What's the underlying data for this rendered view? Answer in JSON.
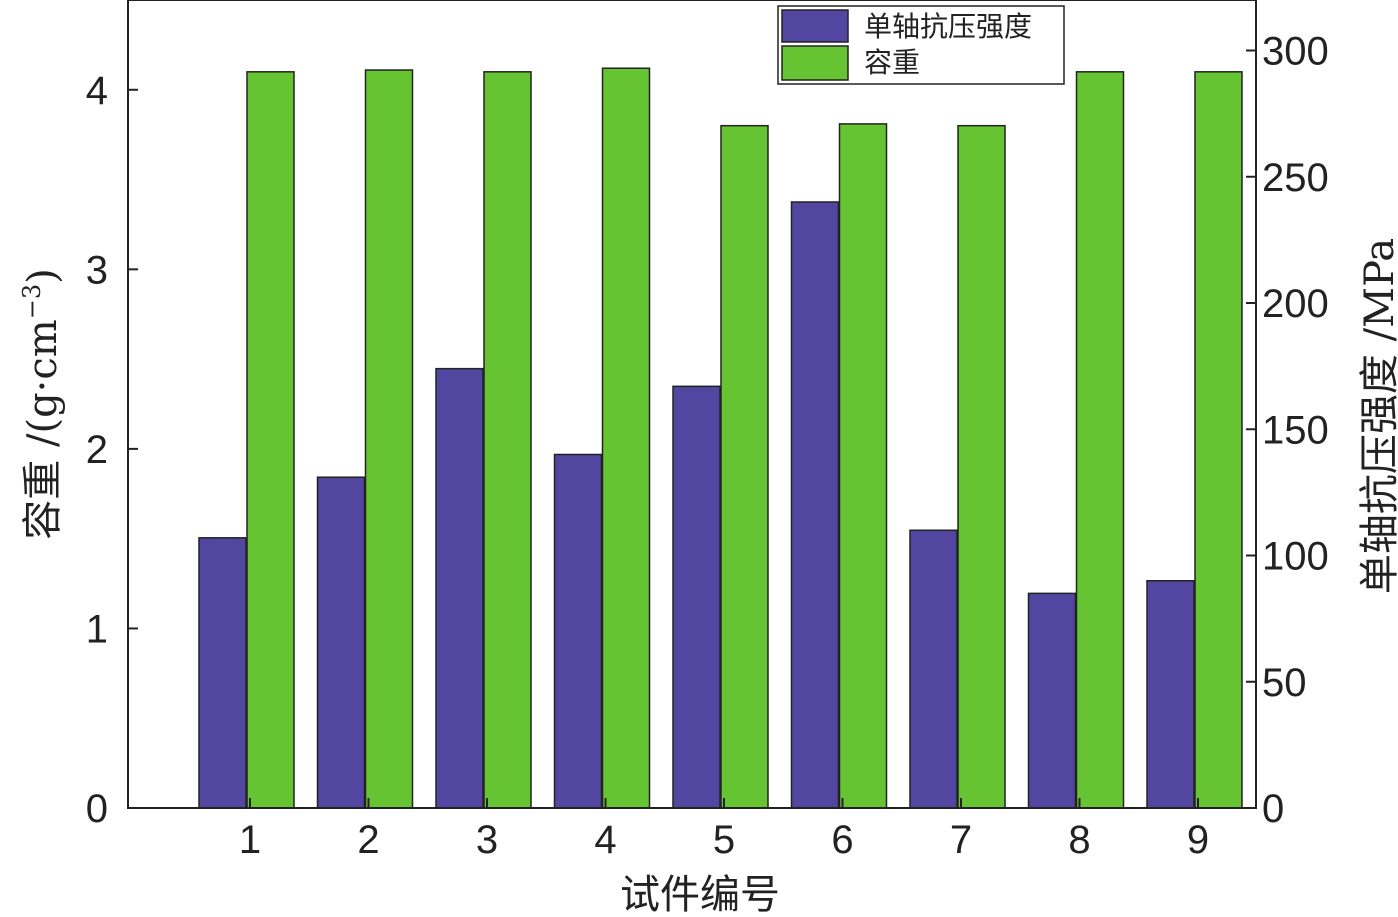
{
  "chart_data": {
    "type": "bar",
    "categories": [
      "1",
      "2",
      "3",
      "4",
      "5",
      "6",
      "7",
      "8",
      "9"
    ],
    "series": [
      {
        "name": "单轴抗压强度",
        "axis": "right",
        "color": "#5346a0",
        "values": [
          107,
          131,
          174,
          140,
          167,
          240,
          110,
          85,
          90
        ]
      },
      {
        "name": "容重",
        "axis": "left",
        "color": "#66c432",
        "values": [
          4.1,
          4.11,
          4.1,
          4.12,
          3.8,
          3.81,
          3.8,
          4.1,
          4.1
        ]
      }
    ],
    "xlabel": "试件编号",
    "ylabel_left_text": "容重 /(g·cm",
    "ylabel_left_sup": "−3",
    "ylabel_left_close": ")",
    "ylabel_right": "单轴抗压强度 /MPa",
    "ylim_left": [
      0,
      4.5
    ],
    "ylim_right": [
      0,
      320
    ],
    "left_ticks": [
      "0",
      "1",
      "2",
      "3",
      "4"
    ],
    "right_ticks": [
      "0",
      "50",
      "100",
      "150",
      "200",
      "250",
      "300"
    ],
    "legend": {
      "placement": "top-right",
      "entries": [
        "单轴抗压强度",
        "容重"
      ]
    },
    "grid": false
  }
}
